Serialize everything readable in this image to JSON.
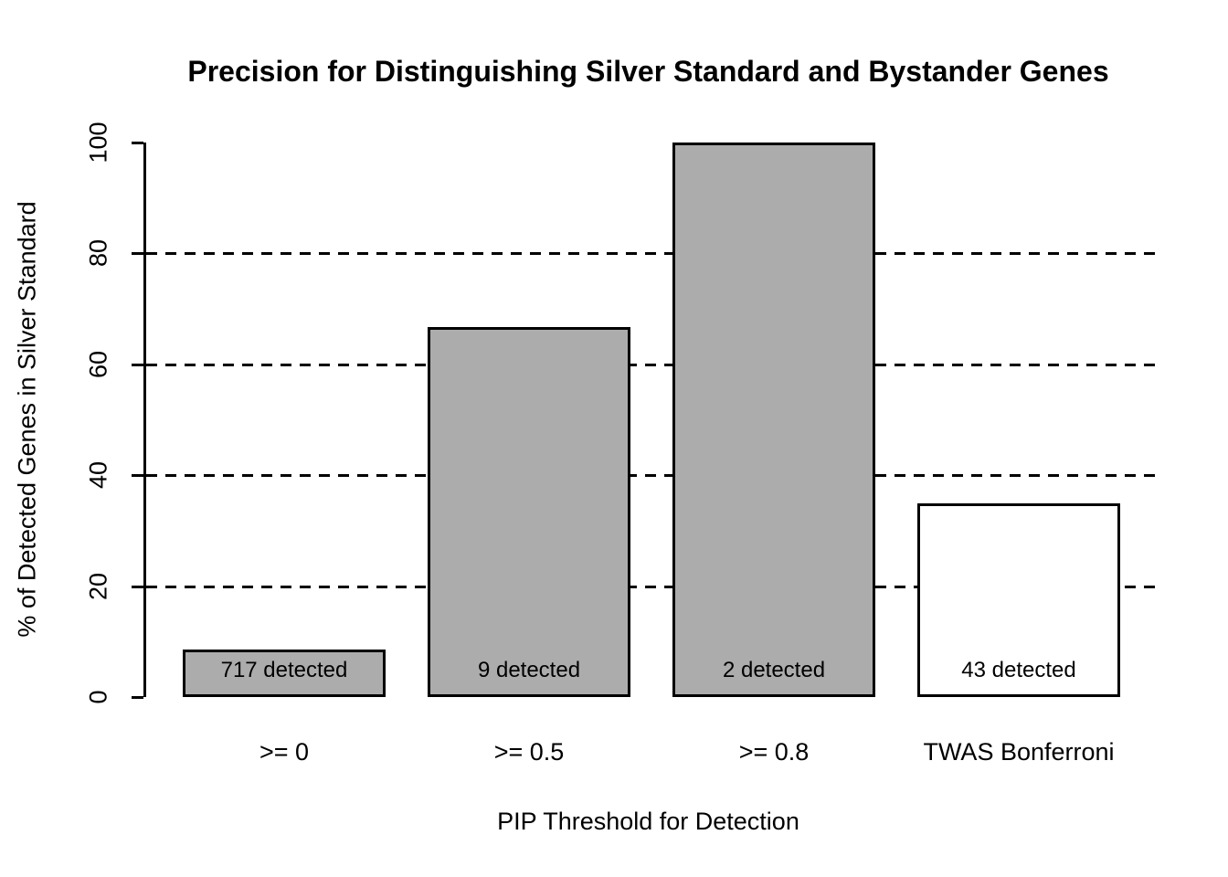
{
  "chart_data": {
    "type": "bar",
    "title": "Precision for Distinguishing Silver Standard and Bystander Genes",
    "xlabel": "PIP Threshold for Detection",
    "ylabel": "% of Detected Genes in Silver Standard",
    "categories": [
      ">= 0",
      ">= 0.5",
      ">= 0.8",
      "TWAS Bonferroni"
    ],
    "values": [
      8.5,
      66.7,
      100,
      35
    ],
    "bar_labels": [
      "717 detected",
      "9 detected",
      "2 detected",
      "43 detected"
    ],
    "bar_colors": [
      "#ACACAC",
      "#ACACAC",
      "#ACACAC",
      "#FFFFFF"
    ],
    "yticks": [
      0,
      20,
      40,
      60,
      80,
      100
    ],
    "ytick_labels": [
      "0",
      "20",
      "40",
      "60",
      "80",
      "100"
    ],
    "gridlines": [
      20,
      40,
      60,
      80
    ],
    "grid_style": "dashed",
    "ylim": [
      0,
      100
    ],
    "legend_position": "none"
  },
  "colors": {
    "background": "#FFFFFF",
    "line": "#000000",
    "bar_gray": "#ACACAC",
    "bar_white": "#FFFFFF"
  }
}
